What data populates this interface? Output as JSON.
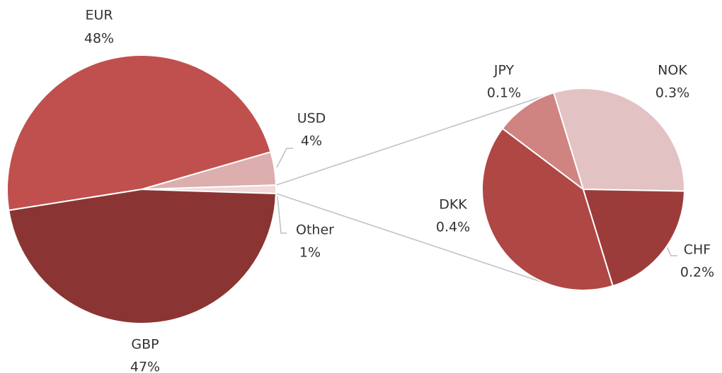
{
  "chart_data": [
    {
      "type": "pie",
      "categories": [
        "Other",
        "USD",
        "EUR",
        "GBP"
      ],
      "values": [
        1,
        4,
        48,
        47
      ],
      "value_labels": [
        "1%",
        "4%",
        "48%",
        "47%"
      ],
      "colors": [
        "#f0d9d9",
        "#dcaeae",
        "#c0504d",
        "#8a3533"
      ]
    },
    {
      "type": "pie",
      "categories": [
        "NOK",
        "JPY",
        "DKK",
        "CHF"
      ],
      "values": [
        0.3,
        0.1,
        0.4,
        0.2
      ],
      "value_labels": [
        "0.3%",
        "0.1%",
        "0.4%",
        "0.2%"
      ],
      "colors": [
        "#e3c2c3",
        "#cf8482",
        "#af4745",
        "#9c3c3a"
      ]
    }
  ]
}
